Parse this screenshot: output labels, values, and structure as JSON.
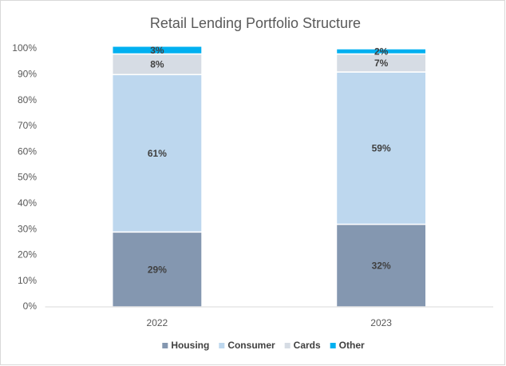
{
  "chart_data": {
    "type": "stacked_bar",
    "title": "Retail Lending Portfolio Structure",
    "categories": [
      "2022",
      "2023"
    ],
    "series": [
      {
        "name": "Housing",
        "color": "#8497b0",
        "values": [
          29,
          32
        ],
        "value_labels": [
          "29%",
          "32%"
        ]
      },
      {
        "name": "Consumer",
        "color": "#bdd7ee",
        "values": [
          61,
          59
        ],
        "value_labels": [
          "61%",
          "59%"
        ]
      },
      {
        "name": "Cards",
        "color": "#d6dce4",
        "values": [
          8,
          7
        ],
        "value_labels": [
          "8%",
          "7%"
        ]
      },
      {
        "name": "Other",
        "color": "#00b0f0",
        "values": [
          3,
          2
        ],
        "value_labels": [
          "3%",
          "2%"
        ]
      }
    ],
    "ylim": [
      0,
      100
    ],
    "yticks": [
      {
        "value": 0,
        "label": "0%"
      },
      {
        "value": 10,
        "label": "10%"
      },
      {
        "value": 20,
        "label": "20%"
      },
      {
        "value": 30,
        "label": "30%"
      },
      {
        "value": 40,
        "label": "40%"
      },
      {
        "value": 50,
        "label": "50%"
      },
      {
        "value": 60,
        "label": "60%"
      },
      {
        "value": 70,
        "label": "70%"
      },
      {
        "value": 80,
        "label": "80%"
      },
      {
        "value": 90,
        "label": "90%"
      },
      {
        "value": 100,
        "label": "100%"
      }
    ],
    "grid": false,
    "legend": "bottom"
  }
}
